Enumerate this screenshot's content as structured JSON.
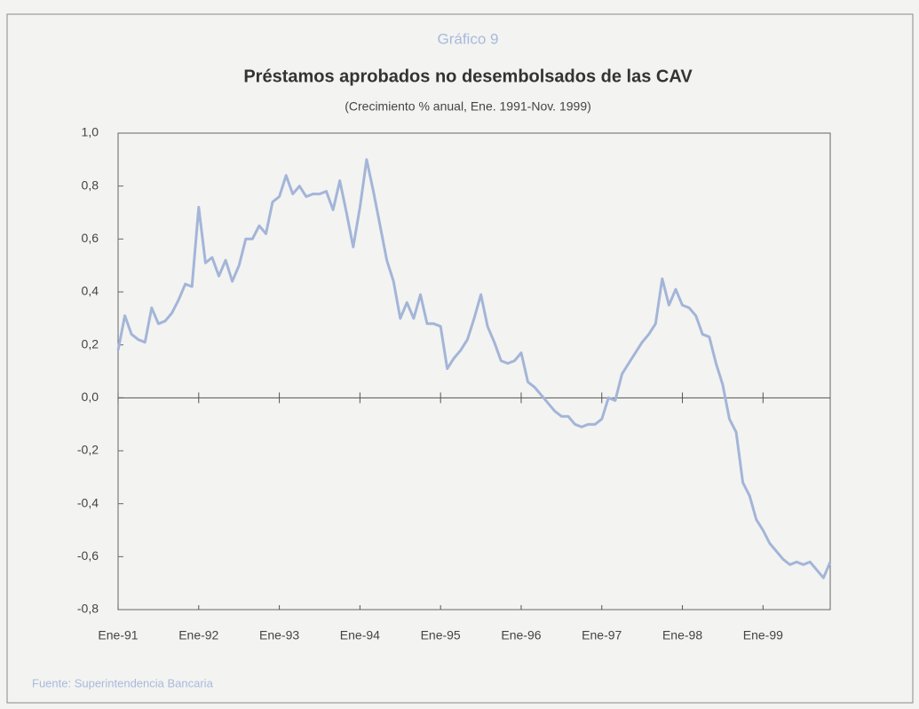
{
  "chart_data": {
    "type": "line",
    "kicker": "Gráfico 9",
    "title": "Préstamos aprobados no desembolsados de las CAV",
    "subtitle": "(Crecimiento % anual, Ene. 1991-Nov. 1999)",
    "source": "Fuente: Superintendencia Bancaria",
    "categories": [
      "Ene-91",
      null,
      null,
      null,
      null,
      null,
      null,
      null,
      null,
      null,
      null,
      null,
      "Ene-92",
      null,
      null,
      null,
      null,
      null,
      null,
      null,
      null,
      null,
      null,
      null,
      "Ene-93",
      null,
      null,
      null,
      null,
      null,
      null,
      null,
      null,
      null,
      null,
      null,
      "Ene-94",
      null,
      null,
      null,
      null,
      null,
      null,
      null,
      null,
      null,
      null,
      null,
      "Ene-95",
      null,
      null,
      null,
      null,
      null,
      null,
      null,
      null,
      null,
      null,
      null,
      "Ene-96",
      null,
      null,
      null,
      null,
      null,
      null,
      null,
      null,
      null,
      null,
      null,
      "Ene-97",
      null,
      null,
      null,
      null,
      null,
      null,
      null,
      null,
      null,
      null,
      null,
      "Ene-98",
      null,
      null,
      null,
      null,
      null,
      null,
      null,
      null,
      null,
      null,
      null,
      "Ene-99",
      null,
      null,
      null,
      null,
      null,
      null,
      null,
      null,
      null,
      null
    ],
    "series": [
      {
        "name": "CAV",
        "color": "#a3b5d8",
        "values": [
          0.18,
          0.31,
          0.24,
          0.22,
          0.21,
          0.34,
          0.28,
          0.29,
          0.32,
          0.37,
          0.43,
          0.42,
          0.72,
          0.51,
          0.53,
          0.46,
          0.52,
          0.44,
          0.5,
          0.6,
          0.6,
          0.65,
          0.62,
          0.74,
          0.76,
          0.84,
          0.77,
          0.8,
          0.76,
          0.77,
          0.77,
          0.78,
          0.71,
          0.82,
          0.7,
          0.57,
          0.72,
          0.9,
          0.78,
          0.65,
          0.52,
          0.44,
          0.3,
          0.36,
          0.3,
          0.39,
          0.28,
          0.28,
          0.27,
          0.11,
          0.15,
          0.18,
          0.22,
          0.3,
          0.39,
          0.27,
          0.21,
          0.14,
          0.13,
          0.14,
          0.17,
          0.06,
          0.04,
          0.01,
          -0.02,
          -0.05,
          -0.07,
          -0.07,
          -0.1,
          -0.11,
          -0.1,
          -0.1,
          -0.08,
          0.0,
          -0.01,
          0.09,
          0.13,
          0.17,
          0.21,
          0.24,
          0.28,
          0.45,
          0.35,
          0.41,
          0.35,
          0.34,
          0.31,
          0.24,
          0.23,
          0.13,
          0.05,
          -0.08,
          -0.13,
          -0.32,
          -0.37,
          -0.46,
          -0.5,
          -0.55,
          -0.58,
          -0.61,
          -0.63,
          -0.62,
          -0.63,
          -0.62,
          -0.65,
          -0.68,
          -0.62
        ]
      }
    ],
    "ylim": [
      -0.8,
      1.0
    ],
    "yticks": [
      {
        "value": 1.0,
        "label": "1,0"
      },
      {
        "value": 0.8,
        "label": "0,8"
      },
      {
        "value": 0.6,
        "label": "0,6"
      },
      {
        "value": 0.4,
        "label": "0,4"
      },
      {
        "value": 0.2,
        "label": "0,2"
      },
      {
        "value": 0.0,
        "label": "0,0"
      },
      {
        "value": -0.2,
        "label": "-0,2"
      },
      {
        "value": -0.4,
        "label": "-0,4"
      },
      {
        "value": -0.6,
        "label": "-0,6"
      },
      {
        "value": -0.8,
        "label": "-0,8"
      }
    ]
  }
}
